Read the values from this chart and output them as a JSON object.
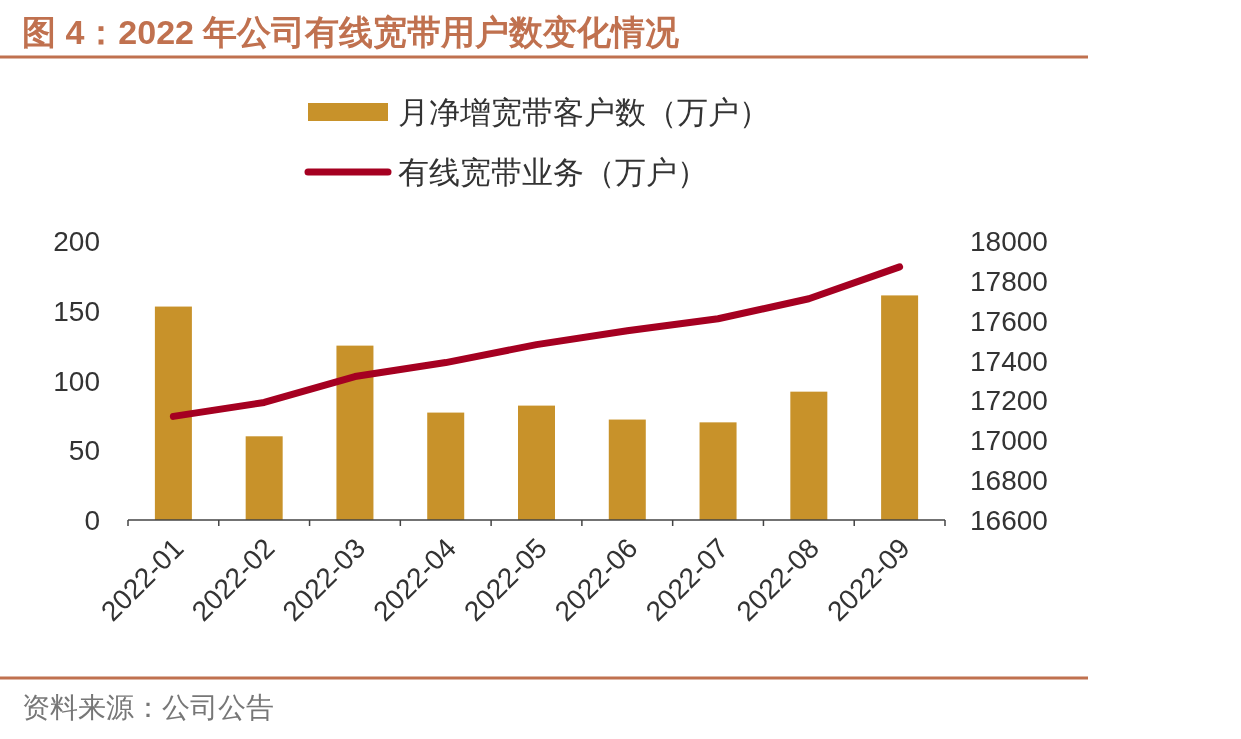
{
  "chart_data": {
    "type": "bar",
    "title": "图 4：2022 年公司有线宽带用户数变化情况",
    "categories": [
      "2022-01",
      "2022-02",
      "2022-03",
      "2022-04",
      "2022-05",
      "2022-06",
      "2022-07",
      "2022-08",
      "2022-09"
    ],
    "series": [
      {
        "name": "月净增宽带客户数（万户）",
        "color": "#c8922a",
        "values": [
          153,
          60,
          125,
          77,
          82,
          72,
          70,
          92,
          161
        ]
      },
      {
        "name": "有线宽带业务（万户）",
        "type": "line",
        "axis": "y2",
        "color": "#a50021",
        "values": [
          17120,
          17190,
          17320,
          17390,
          17480,
          17550,
          17610,
          17710,
          17870
        ]
      }
    ],
    "ylim": [
      0,
      200
    ],
    "yticks": [
      0,
      50,
      100,
      150,
      200
    ],
    "y2lim": [
      16600,
      18000
    ],
    "y2ticks": [
      16600,
      16800,
      17000,
      17200,
      17400,
      17600,
      17800,
      18000
    ],
    "legend": "top",
    "annotations": [
      "资料来源：公司公告"
    ]
  }
}
